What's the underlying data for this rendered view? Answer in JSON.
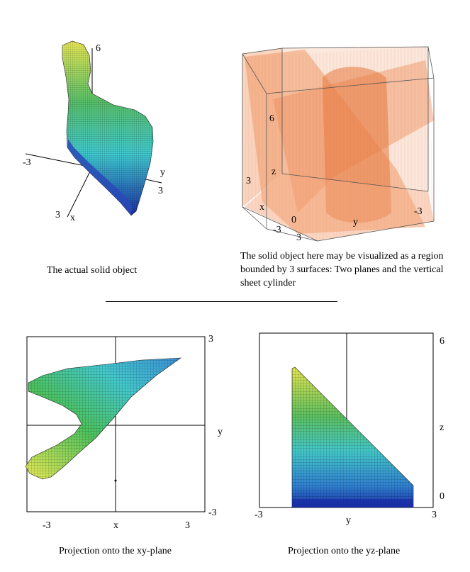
{
  "top_left": {
    "caption": "The actual solid object",
    "axes": {
      "z_top": "6",
      "neg_x": "-3",
      "y_label": "y",
      "y_tick": "3",
      "x_tick": "3",
      "x_label": "x"
    }
  },
  "top_right": {
    "caption": "The solid object here may be visualized as a region bounded by 3 surfaces: Two planes and the vertical sheet cylinder",
    "axes": {
      "z6": "6",
      "z_label": "z",
      "three": "3",
      "x_label": "x",
      "zero": "0",
      "neg3_left": "-3",
      "three_bottom": "3",
      "y_label": "y",
      "neg3_right": "-3"
    }
  },
  "bottom_left": {
    "caption": "Projection onto the xy-plane",
    "axes": {
      "top_right": "3",
      "y_label": "y",
      "bottom_right": "-3",
      "x_neg": "-3",
      "x_label": "x",
      "x_pos": "3"
    }
  },
  "bottom_right": {
    "caption": "Projection onto the yz-plane",
    "axes": {
      "top_right": "6",
      "z_label": "z",
      "zero": "0",
      "y_neg": "-3",
      "y_label": "y",
      "y_pos": "3"
    }
  },
  "colors": {
    "surface_top": "#e8e855",
    "surface_mid": "#3fc9cf",
    "surface_bottom": "#1a2ea6",
    "translucent": "#f0905a"
  }
}
